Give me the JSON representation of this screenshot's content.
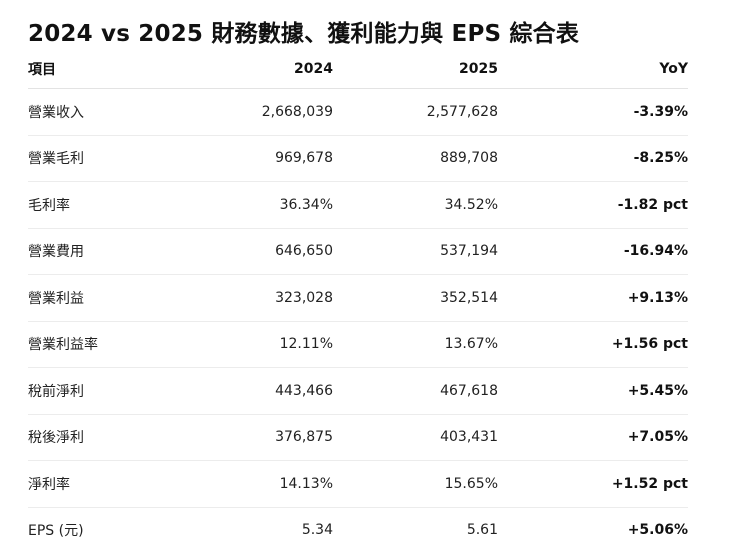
{
  "title": "2024 vs 2025 財務數據、獲利能力與 EPS 綜合表",
  "table": {
    "headers": [
      "項目",
      "2024",
      "2025",
      "YoY"
    ],
    "rows": [
      [
        "營業收入",
        "2,668,039",
        "2,577,628",
        "-3.39%"
      ],
      [
        "營業毛利",
        "969,678",
        "889,708",
        "-8.25%"
      ],
      [
        "毛利率",
        "36.34%",
        "34.52%",
        "-1.82 pct"
      ],
      [
        "營業費用",
        "646,650",
        "537,194",
        "-16.94%"
      ],
      [
        "營業利益",
        "323,028",
        "352,514",
        "+9.13%"
      ],
      [
        "營業利益率",
        "12.11%",
        "13.67%",
        "+1.56 pct"
      ],
      [
        "稅前淨利",
        "443,466",
        "467,618",
        "+5.45%"
      ],
      [
        "稅後淨利",
        "376,875",
        "403,431",
        "+7.05%"
      ],
      [
        "淨利率",
        "14.13%",
        "15.65%",
        "+1.52 pct"
      ],
      [
        "EPS (元)",
        "5.34",
        "5.61",
        "+5.06%"
      ]
    ]
  }
}
